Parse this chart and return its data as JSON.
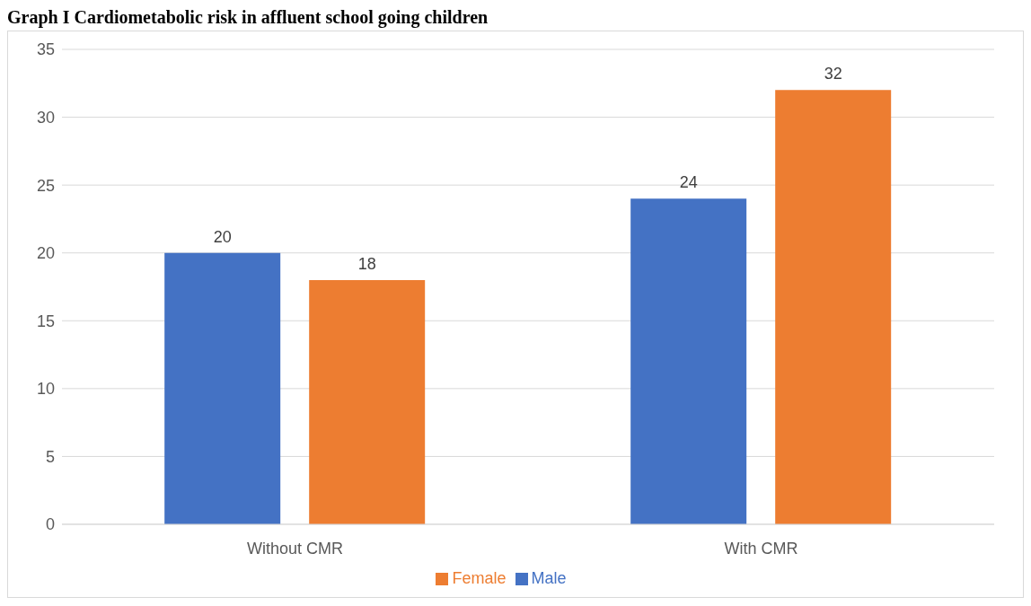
{
  "chart_data": {
    "type": "bar",
    "title": "Graph I Cardiometabolic risk in affluent school going children",
    "categories": [
      "Without CMR",
      "With CMR"
    ],
    "series": [
      {
        "name": "Male",
        "color": "#4472c4",
        "values": [
          20,
          24
        ]
      },
      {
        "name": "Female",
        "color": "#ed7d31",
        "values": [
          18,
          32
        ]
      }
    ],
    "ylim": [
      0,
      35
    ],
    "yticks": [
      0,
      5,
      10,
      15,
      20,
      25,
      30,
      35
    ],
    "grid": "y",
    "legend": "bottom",
    "data_labels": true
  }
}
